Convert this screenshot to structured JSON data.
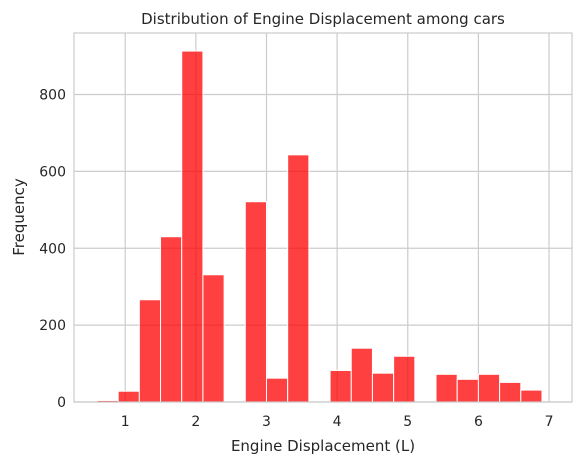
{
  "chart_data": {
    "type": "bar",
    "title": "Distribution of Engine Displacement among cars",
    "xlabel": "Engine Displacement (L)",
    "ylabel": "Frequency",
    "xlim": [
      0.275,
      7.325
    ],
    "ylim": [
      0,
      960
    ],
    "x_ticks": [
      1,
      2,
      3,
      4,
      5,
      6,
      7
    ],
    "y_ticks": [
      0,
      200,
      400,
      600,
      800
    ],
    "grid": true,
    "bar_color": "#ff0000",
    "bins": [
      {
        "x0": 0.6,
        "x1": 0.9,
        "count": 4
      },
      {
        "x0": 0.9,
        "x1": 1.2,
        "count": 28
      },
      {
        "x0": 1.2,
        "x1": 1.5,
        "count": 266
      },
      {
        "x0": 1.5,
        "x1": 1.8,
        "count": 430
      },
      {
        "x0": 1.8,
        "x1": 2.1,
        "count": 913
      },
      {
        "x0": 2.1,
        "x1": 2.4,
        "count": 331
      },
      {
        "x0": 2.4,
        "x1": 2.7,
        "count": 0
      },
      {
        "x0": 2.7,
        "x1": 3.0,
        "count": 521
      },
      {
        "x0": 3.0,
        "x1": 3.3,
        "count": 62
      },
      {
        "x0": 3.3,
        "x1": 3.6,
        "count": 643
      },
      {
        "x0": 3.6,
        "x1": 3.9,
        "count": 0
      },
      {
        "x0": 3.9,
        "x1": 4.2,
        "count": 82
      },
      {
        "x0": 4.2,
        "x1": 4.5,
        "count": 140
      },
      {
        "x0": 4.5,
        "x1": 4.8,
        "count": 75
      },
      {
        "x0": 4.8,
        "x1": 5.1,
        "count": 119
      },
      {
        "x0": 5.1,
        "x1": 5.4,
        "count": 0
      },
      {
        "x0": 5.4,
        "x1": 5.7,
        "count": 72
      },
      {
        "x0": 5.7,
        "x1": 6.0,
        "count": 59
      },
      {
        "x0": 6.0,
        "x1": 6.3,
        "count": 72
      },
      {
        "x0": 6.3,
        "x1": 6.6,
        "count": 51
      },
      {
        "x0": 6.6,
        "x1": 6.9,
        "count": 31
      }
    ]
  }
}
